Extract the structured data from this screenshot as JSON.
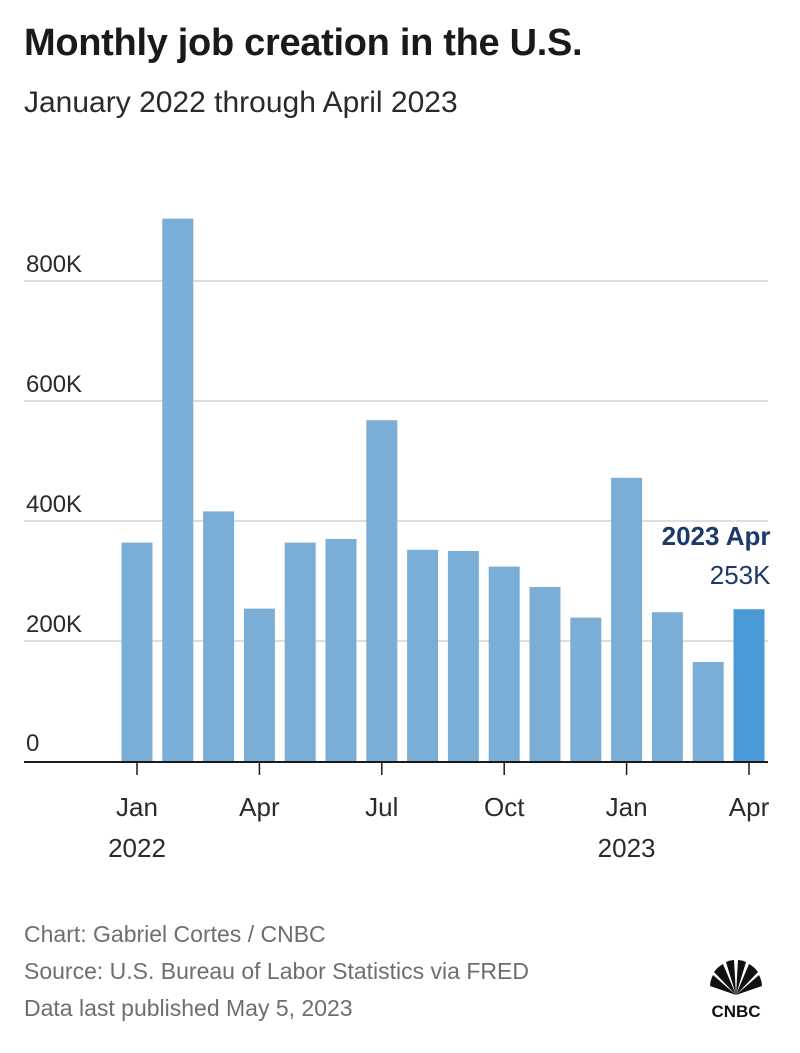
{
  "title": "Monthly job creation in the U.S.",
  "subtitle": "January 2022 through April 2023",
  "chart_data": {
    "type": "bar",
    "title": "Monthly job creation in the U.S.",
    "subtitle": "January 2022 through April 2023",
    "xlabel": "",
    "ylabel": "",
    "categories": [
      "2022-01",
      "2022-02",
      "2022-03",
      "2022-04",
      "2022-05",
      "2022-06",
      "2022-07",
      "2022-08",
      "2022-09",
      "2022-10",
      "2022-11",
      "2022-12",
      "2023-01",
      "2023-02",
      "2023-03",
      "2023-04"
    ],
    "values": [
      364000,
      904000,
      416000,
      254000,
      364000,
      370000,
      568000,
      352000,
      350000,
      324000,
      290000,
      239000,
      472000,
      248000,
      165000,
      253000
    ],
    "ylim": [
      0,
      920000
    ],
    "y_ticks": [
      0,
      200000,
      400000,
      600000,
      800000
    ],
    "y_tick_labels": [
      "0",
      "200K",
      "400K",
      "600K",
      "800K"
    ],
    "x_tick_labels": [
      {
        "category": "2022-01",
        "lines": [
          "Jan",
          "2022"
        ]
      },
      {
        "category": "2022-04",
        "lines": [
          "Apr"
        ]
      },
      {
        "category": "2022-07",
        "lines": [
          "Jul"
        ]
      },
      {
        "category": "2022-10",
        "lines": [
          "Oct"
        ]
      },
      {
        "category": "2023-01",
        "lines": [
          "Jan",
          "2023"
        ]
      },
      {
        "category": "2023-04",
        "lines": [
          "Apr"
        ]
      }
    ],
    "grid": true,
    "highlight": {
      "category": "2023-04",
      "label": "2023 Apr",
      "value_label": "253K"
    },
    "colors": {
      "bar": "#7aaed6",
      "highlight_bar": "#4a9ad8",
      "grid": "#d3d3d3",
      "axis": "#1a1a1a",
      "annotation": "#1b3a6b"
    }
  },
  "footer": {
    "credit": "Chart: Gabriel Cortes / CNBC",
    "source": "Source: U.S. Bureau of Labor Statistics via FRED",
    "published": "Data last published May 5, 2023"
  },
  "logo": {
    "text": "CNBC",
    "icon": "peacock-icon"
  }
}
